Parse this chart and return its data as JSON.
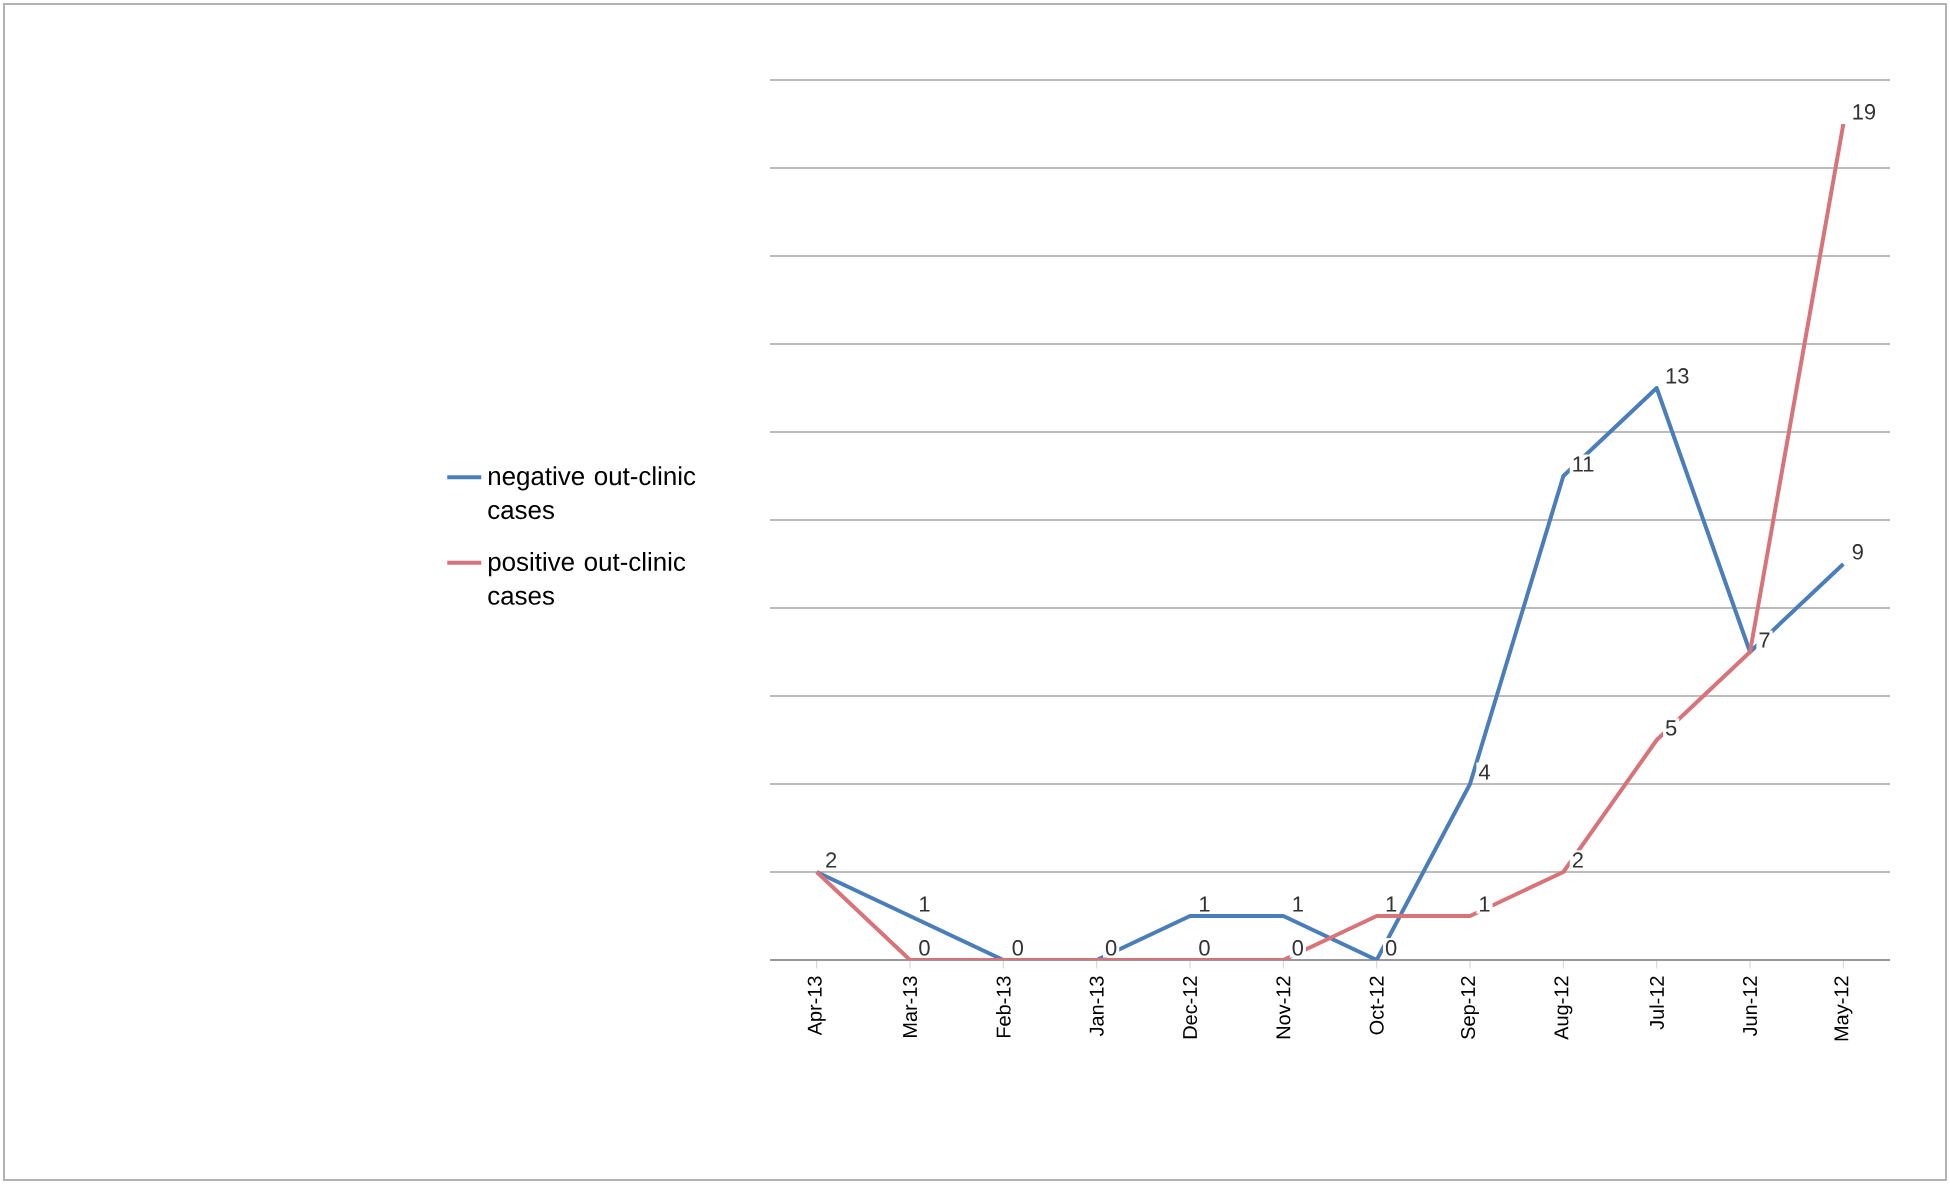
{
  "chart_data": {
    "type": "line",
    "categories": [
      "Apr-13",
      "Mar-13",
      "Feb-13",
      "Jan-13",
      "Dec-12",
      "Nov-12",
      "Oct-12",
      "Sep-12",
      "Aug-12",
      "Jul-12",
      "Jun-12",
      "May-12"
    ],
    "series": [
      {
        "name": "negative out-clinic cases",
        "color": "#4a7ebb",
        "values": [
          2,
          1,
          0,
          0,
          1,
          1,
          0,
          4,
          11,
          13,
          7,
          9
        ],
        "value_labels": [
          "2",
          "1",
          null,
          null,
          "1",
          "1",
          "0",
          "4",
          "11",
          "13",
          "7",
          "9"
        ]
      },
      {
        "name": "positive out-clinic cases",
        "color": "#d9737a",
        "values": [
          2,
          0,
          0,
          0,
          0,
          0,
          1,
          1,
          2,
          5,
          7,
          19
        ],
        "value_labels": [
          null,
          "0",
          "0",
          "0",
          "0",
          "0",
          "1",
          "1",
          "2",
          "5",
          null,
          "19"
        ]
      }
    ],
    "ylim": [
      0,
      20
    ],
    "yticks": [
      {
        "value": 0,
        "label": null
      },
      {
        "value": 2,
        "label": null
      },
      {
        "value": 4,
        "label": null
      },
      {
        "value": 6,
        "label": null
      },
      {
        "value": 8,
        "label": null
      },
      {
        "value": 10,
        "label": null
      },
      {
        "value": 12,
        "label": null
      },
      {
        "value": 14,
        "label": null
      },
      {
        "value": 16,
        "label": null
      },
      {
        "value": 18,
        "label": null
      },
      {
        "value": 20,
        "label": null
      }
    ],
    "grid": "y",
    "legend": "left",
    "tick_labels": "x",
    "marker": "none",
    "line_style": "solid"
  }
}
